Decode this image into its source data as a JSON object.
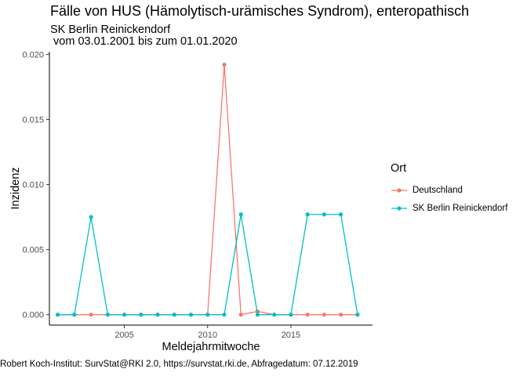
{
  "chart_data": {
    "type": "line",
    "title": "Fälle von HUS (Hämolytisch-urämisches Syndrom), enteropathisch",
    "subtitle": "SK Berlin Reinickendorf\n vom 03.01.2001 bis zum 01.01.2020",
    "xlabel": "Meldejahrmitwoche",
    "ylabel": "Inzidenz",
    "caption": "Robert Koch-Institut: SurvStat@RKI 2.0, https://survstat.rki.de, Abfragedatum: 07.12.2019",
    "legend_title": "Ort",
    "legend_position": "right",
    "xlim": [
      2000.5,
      2019.9
    ],
    "ylim": [
      -0.0008,
      0.0202
    ],
    "x_ticks": [
      2005,
      2010,
      2015
    ],
    "y_ticks": [
      0.0,
      0.005,
      0.01,
      0.015,
      0.02
    ],
    "y_tick_labels": [
      "0.000",
      "0.005",
      "0.010",
      "0.015",
      "0.020"
    ],
    "grid": false,
    "x": [
      2001,
      2002,
      2003,
      2004,
      2005,
      2006,
      2007,
      2008,
      2009,
      2010,
      2011,
      2012,
      2013,
      2014,
      2015,
      2016,
      2017,
      2018,
      2019
    ],
    "series": [
      {
        "name": "Deutschland",
        "color": "#F8766D",
        "values": [
          0,
          0,
          0,
          0,
          0,
          0,
          0,
          0,
          0,
          0,
          0.0192,
          0,
          0.00025,
          0,
          0,
          0,
          0,
          0,
          0
        ]
      },
      {
        "name": "SK Berlin Reinickendorf",
        "color": "#00BFC4",
        "values": [
          0,
          0,
          0.0075,
          0,
          0,
          0,
          0,
          0,
          0,
          0,
          0,
          0.0077,
          0,
          0,
          0,
          0.0077,
          0.0077,
          0.0077,
          0
        ]
      }
    ]
  }
}
